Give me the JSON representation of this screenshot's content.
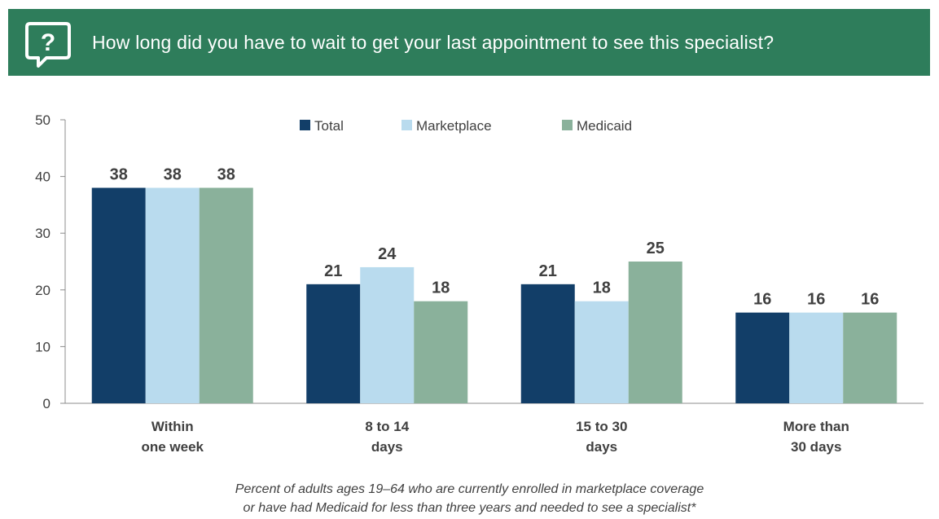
{
  "header": {
    "question": "How long did you have to wait to get your last appointment to see this specialist?",
    "icon": "question-bubble-icon",
    "background_color": "#2e7d5b"
  },
  "chart_data": {
    "type": "bar",
    "categories": [
      [
        "Within",
        "one week"
      ],
      [
        "8 to 14",
        "days"
      ],
      [
        "15 to 30",
        "days"
      ],
      [
        "More than",
        "30 days"
      ]
    ],
    "series": [
      {
        "name": "Total",
        "values": [
          38,
          21,
          21,
          16
        ],
        "color": "#123e68"
      },
      {
        "name": "Marketplace",
        "values": [
          38,
          24,
          18,
          16
        ],
        "color": "#b9dbee"
      },
      {
        "name": "Medicaid",
        "values": [
          38,
          18,
          25,
          16
        ],
        "color": "#8ab19b"
      }
    ],
    "ylim": [
      0,
      50
    ],
    "yticks": [
      0,
      10,
      20,
      30,
      40,
      50
    ],
    "legend_position": "top-center",
    "grid": false,
    "data_labels": true
  },
  "footnote": {
    "line1": "Percent of adults ages 19–64 who are currently enrolled in marketplace coverage",
    "line2": "or have had Medicaid for less than three years and needed to see a specialist*"
  }
}
